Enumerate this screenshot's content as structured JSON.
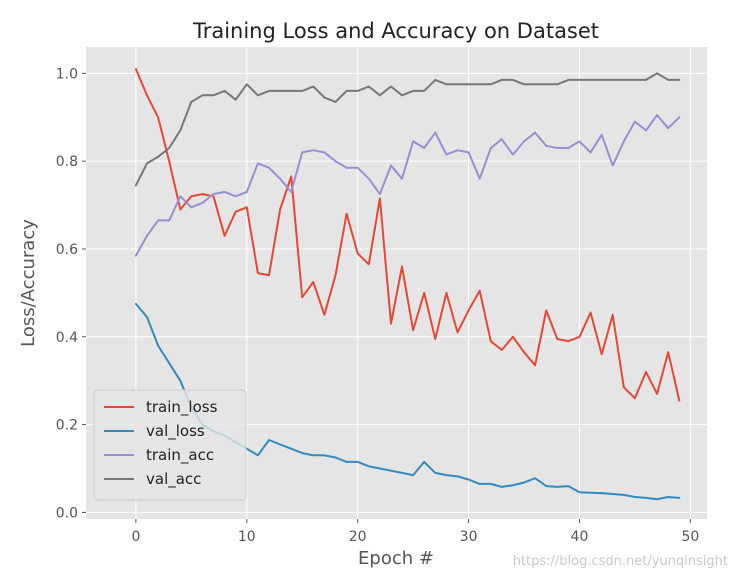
{
  "chart_data": {
    "type": "line",
    "title": "Training Loss and Accuracy on Dataset",
    "xlabel": "Epoch #",
    "ylabel": "Loss/Accuracy",
    "xlim": [
      -4.5,
      51.5
    ],
    "ylim": [
      -0.015,
      1.06
    ],
    "xticks": [
      0,
      10,
      20,
      30,
      40,
      50
    ],
    "yticks": [
      0.0,
      0.2,
      0.4,
      0.6,
      0.8,
      1.0
    ],
    "ytick_labels": [
      "0.0",
      "0.2",
      "0.4",
      "0.6",
      "0.8",
      "1.0"
    ],
    "grid": true,
    "legend_position": "lower-left",
    "x": [
      0,
      1,
      2,
      3,
      4,
      5,
      6,
      7,
      8,
      9,
      10,
      11,
      12,
      13,
      14,
      15,
      16,
      17,
      18,
      19,
      20,
      21,
      22,
      23,
      24,
      25,
      26,
      27,
      28,
      29,
      30,
      31,
      32,
      33,
      34,
      35,
      36,
      37,
      38,
      39,
      40,
      41,
      42,
      43,
      44,
      45,
      46,
      47,
      48,
      49
    ],
    "series": [
      {
        "name": "train_loss",
        "color": "#e24a33",
        "values": [
          1.01,
          0.95,
          0.9,
          0.8,
          0.69,
          0.72,
          0.725,
          0.72,
          0.63,
          0.685,
          0.695,
          0.545,
          0.54,
          0.69,
          0.765,
          0.49,
          0.525,
          0.45,
          0.54,
          0.68,
          0.59,
          0.565,
          0.715,
          0.43,
          0.56,
          0.415,
          0.5,
          0.395,
          0.5,
          0.41,
          0.46,
          0.505,
          0.39,
          0.37,
          0.4,
          0.365,
          0.335,
          0.46,
          0.395,
          0.39,
          0.4,
          0.455,
          0.36,
          0.45,
          0.285,
          0.26,
          0.32,
          0.27,
          0.365,
          0.255
        ]
      },
      {
        "name": "val_loss",
        "color": "#348abd",
        "values": [
          0.475,
          0.445,
          0.38,
          0.34,
          0.3,
          0.24,
          0.2,
          0.185,
          0.175,
          0.16,
          0.145,
          0.13,
          0.165,
          0.155,
          0.145,
          0.135,
          0.13,
          0.13,
          0.125,
          0.115,
          0.115,
          0.105,
          0.1,
          0.095,
          0.09,
          0.085,
          0.115,
          0.09,
          0.085,
          0.082,
          0.075,
          0.065,
          0.065,
          0.058,
          0.062,
          0.068,
          0.078,
          0.06,
          0.058,
          0.06,
          0.046,
          0.045,
          0.044,
          0.042,
          0.04,
          0.035,
          0.033,
          0.03,
          0.035,
          0.033
        ]
      },
      {
        "name": "train_acc",
        "color": "#988ed5",
        "values": [
          0.585,
          0.63,
          0.665,
          0.665,
          0.72,
          0.695,
          0.705,
          0.725,
          0.73,
          0.72,
          0.73,
          0.795,
          0.785,
          0.76,
          0.73,
          0.82,
          0.825,
          0.82,
          0.8,
          0.785,
          0.785,
          0.76,
          0.725,
          0.79,
          0.76,
          0.845,
          0.83,
          0.865,
          0.815,
          0.825,
          0.82,
          0.76,
          0.83,
          0.85,
          0.815,
          0.845,
          0.865,
          0.835,
          0.83,
          0.83,
          0.845,
          0.82,
          0.86,
          0.79,
          0.845,
          0.89,
          0.87,
          0.905,
          0.875,
          0.9
        ]
      },
      {
        "name": "val_acc",
        "color": "#777777",
        "values": [
          0.745,
          0.795,
          0.81,
          0.83,
          0.87,
          0.935,
          0.95,
          0.95,
          0.96,
          0.94,
          0.975,
          0.95,
          0.96,
          0.96,
          0.96,
          0.96,
          0.97,
          0.945,
          0.935,
          0.96,
          0.96,
          0.97,
          0.95,
          0.97,
          0.95,
          0.96,
          0.96,
          0.985,
          0.975,
          0.975,
          0.975,
          0.975,
          0.975,
          0.985,
          0.985,
          0.975,
          0.975,
          0.975,
          0.975,
          0.985,
          0.985,
          0.985,
          0.985,
          0.985,
          0.985,
          0.985,
          0.985,
          1.0,
          0.985,
          0.985
        ]
      }
    ]
  },
  "watermark": "https://blog.csdn.net/yunqinsight"
}
